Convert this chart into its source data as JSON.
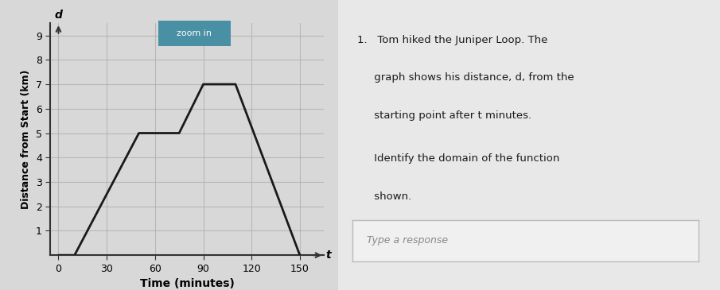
{
  "line_x": [
    0,
    10,
    50,
    75,
    90,
    110,
    150
  ],
  "line_y": [
    0,
    0,
    5,
    5,
    7,
    7,
    0
  ],
  "xlim": [
    -5,
    165
  ],
  "ylim": [
    0,
    9.5
  ],
  "xticks": [
    0,
    30,
    60,
    90,
    120,
    150
  ],
  "yticks": [
    1,
    2,
    3,
    4,
    5,
    6,
    7,
    8,
    9
  ],
  "xlabel": "Time (minutes)",
  "ylabel": "Distance from Start (km)",
  "xaxis_label": "t",
  "yaxis_label": "d",
  "line_color": "#1a1a1a",
  "line_width": 2.0,
  "grid_color": "#aaaaaa",
  "bg_color": "#d8d8d8",
  "plot_bg_color": "#d8d8d8",
  "title_text": "zoom in",
  "title_bg": "#4a90a4",
  "title_fg": "#ffffff",
  "right_text_1": "1.   Tom hiked the Juniper Loop. The",
  "right_text_2": "     graph shows his distance, d, from the",
  "right_text_3": "     starting point after t minutes.",
  "right_text_4": "     Identify the domain of the function",
  "right_text_5": "     shown.",
  "right_text_6": "Type a response",
  "right_bg": "#e8e8e8"
}
